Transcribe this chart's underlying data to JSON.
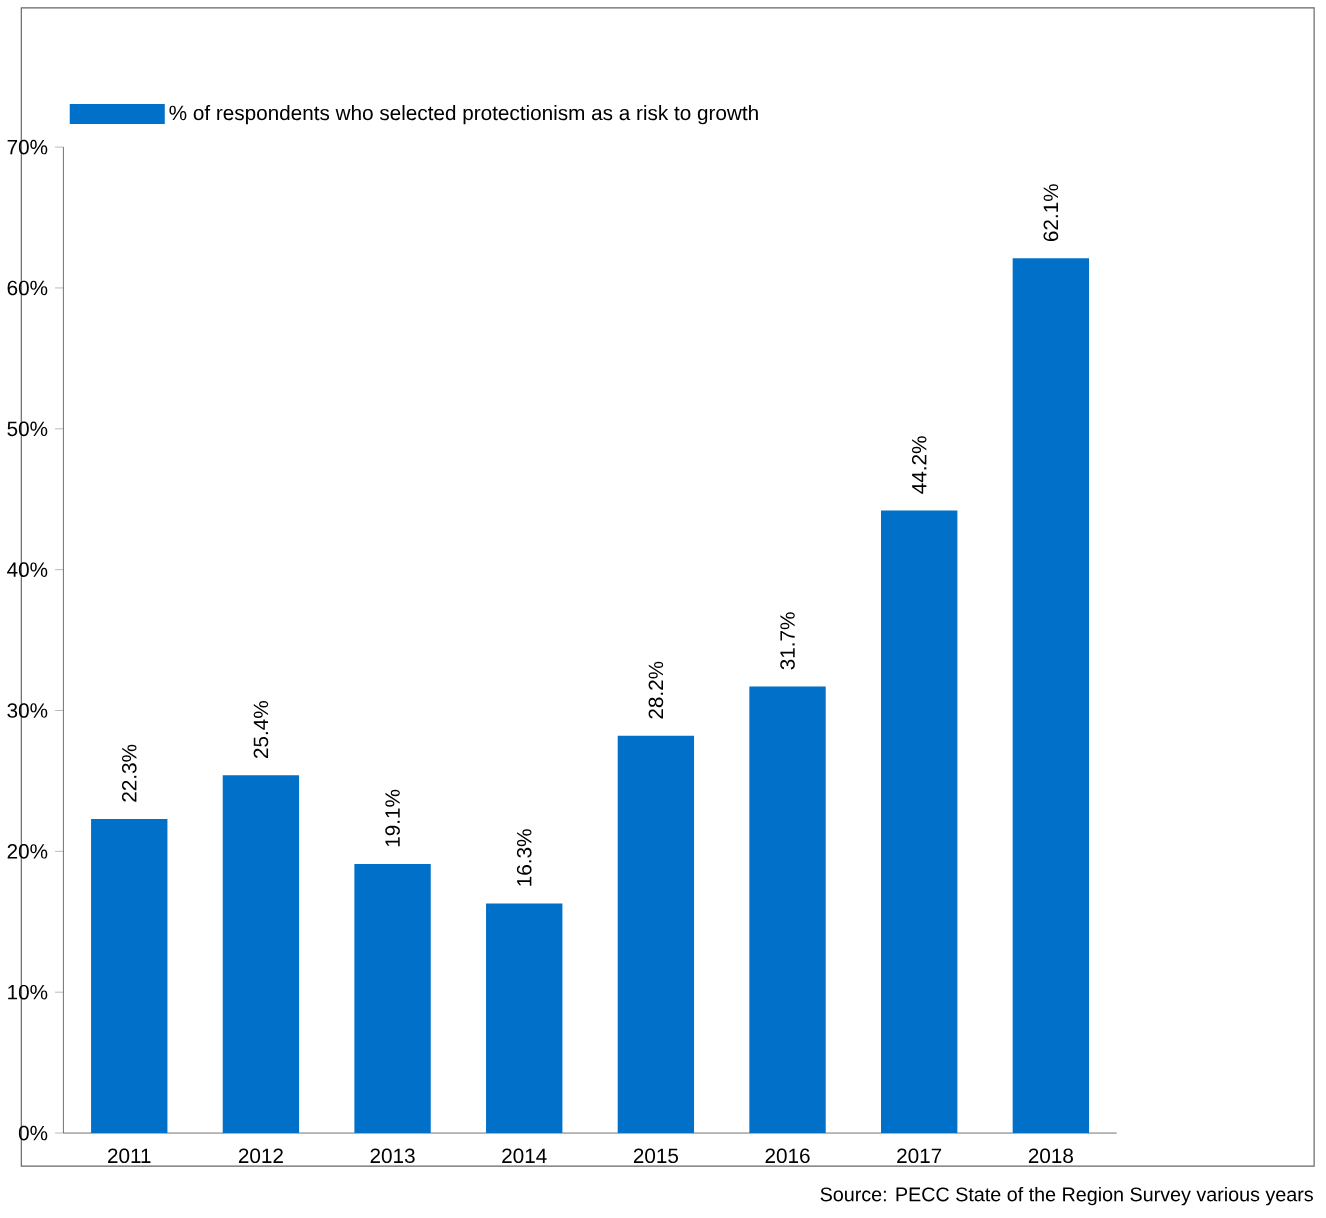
{
  "chart_data": {
    "type": "bar",
    "categories": [
      "2011",
      "2012",
      "2013",
      "2014",
      "2015",
      "2016",
      "2017",
      "2018"
    ],
    "series": [
      {
        "name": "% of respondents who selected protectionism as a risk to growth",
        "color": "#0070c8",
        "values": [
          22.3,
          25.4,
          19.1,
          16.3,
          28.2,
          31.7,
          44.2,
          62.1
        ]
      }
    ],
    "value_labels": [
      "22.3%",
      "25.4%",
      "19.1%",
      "16.3%",
      "28.2%",
      "31.7%",
      "44.2%",
      "62.1%"
    ],
    "ylim": [
      0,
      70
    ],
    "yticks": [
      {
        "value": 0,
        "label": "0%"
      },
      {
        "value": 10,
        "label": "10%"
      },
      {
        "value": 20,
        "label": "20%"
      },
      {
        "value": 30,
        "label": "30%"
      },
      {
        "value": 40,
        "label": "40%"
      },
      {
        "value": 50,
        "label": "50%"
      },
      {
        "value": 60,
        "label": "60%"
      },
      {
        "value": 70,
        "label": "70%"
      }
    ],
    "legend": "top left",
    "grid": false,
    "annotations": [
      "Source: PECC State of the Region Survey various years"
    ]
  }
}
